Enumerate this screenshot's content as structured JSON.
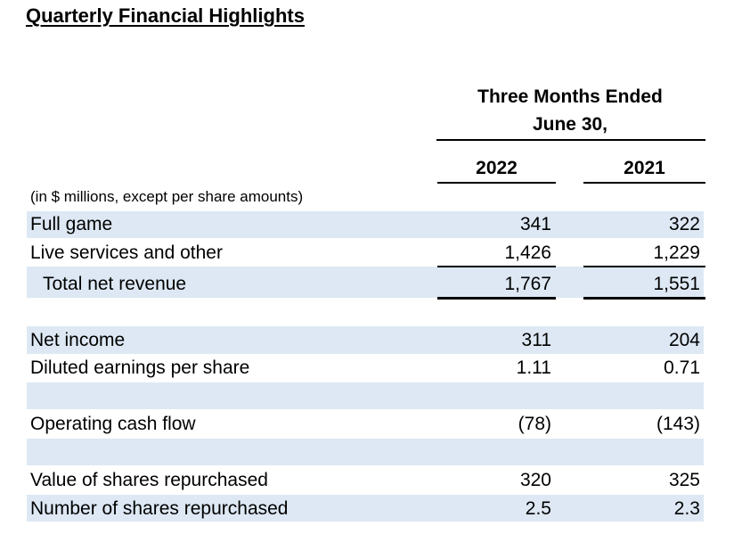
{
  "title": "Quarterly Financial Highlights",
  "header": {
    "period_line1": "Three Months Ended",
    "period_line2": "June 30,",
    "col_2022": "2022",
    "col_2021": "2021"
  },
  "units_note": "(in $ millions, except per share amounts)",
  "rows": {
    "full_game": {
      "label": "Full game",
      "v2022": "341",
      "v2021": "322"
    },
    "live_services": {
      "label": "Live services and other",
      "v2022": "1,426",
      "v2021": "1,229"
    },
    "total_net_revenue": {
      "label": "Total net revenue",
      "v2022": "1,767",
      "v2021": "1,551"
    },
    "net_income": {
      "label": "Net income",
      "v2022": "311",
      "v2021": "204"
    },
    "diluted_eps": {
      "label": "Diluted earnings per share",
      "v2022": "1.11",
      "v2021": "0.71"
    },
    "operating_cash_flow": {
      "label": "Operating cash flow",
      "v2022": "(78)",
      "v2021": "(143)"
    },
    "value_repurchased": {
      "label": "Value of shares repurchased",
      "v2022": "320",
      "v2021": "325"
    },
    "number_repurchased": {
      "label": "Number of shares repurchased",
      "v2022": "2.5",
      "v2021": "2.3"
    }
  }
}
